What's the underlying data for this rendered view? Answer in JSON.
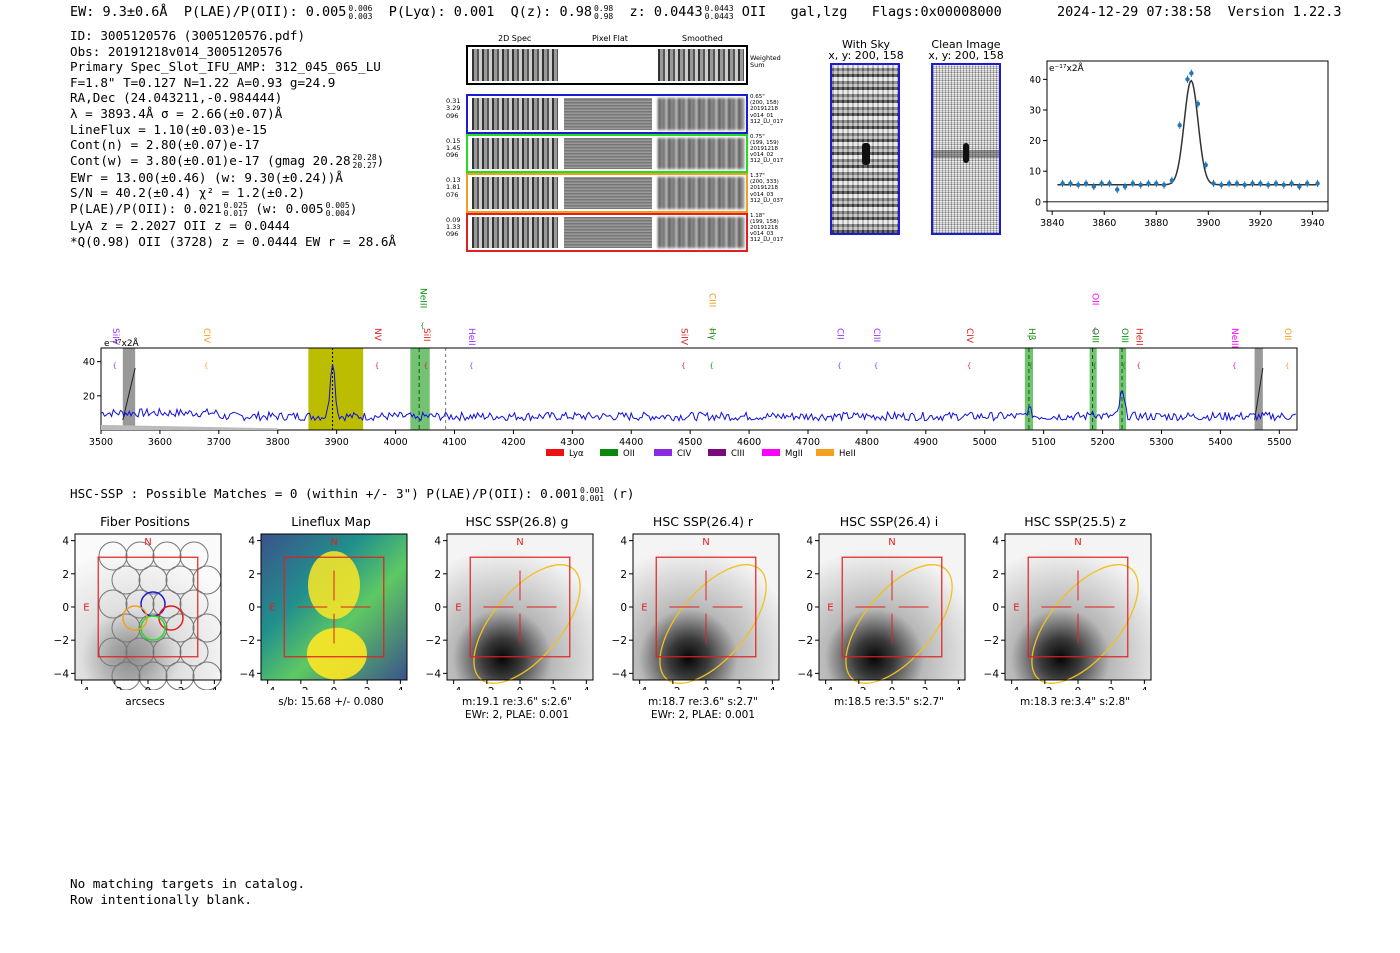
{
  "header": {
    "ew": "EW: 9.3±0.6Å",
    "plae": "P(LAE)/P(OII): 0.005",
    "plae_hi": "0.006",
    "plae_lo": "0.003",
    "plya": "P(Lyα): 0.001",
    "q": "Q(z): 0.98",
    "q_hi": "0.98",
    "q_lo": "0.98",
    "z": "z: 0.0443",
    "z_hi": "0.0443",
    "z_lo": "0.0443",
    "z_line": "OII",
    "class": "gal,lzg",
    "flags": "Flags:0x00008000",
    "timestamp": "2024-12-29 07:38:58",
    "version": "Version 1.22.3"
  },
  "info": {
    "id": "ID: 3005120576 (3005120576.pdf)",
    "obs": "Obs: 20191218v014_3005120576",
    "primary": "Primary Spec_Slot_IFU_AMP: 312_045_065_LU",
    "fwhm": "F=1.8\"  T=0.127  N=1.22  A=0.93  g=24.9",
    "radec": "RA,Dec (24.043211,-0.984444)",
    "lambda": "λ = 3893.4Å  σ = 2.66(±0.07)Å",
    "lineflux": "LineFlux = 1.10(±0.03)e-15",
    "contn": "Cont(n) = 2.80(±0.07)e-17",
    "contw": "Cont(w) = 3.80(±0.01)e-17 (gmag 20.28",
    "contw_hi": "20.28",
    "contw_lo": "20.27",
    "contw_close": ")",
    "ewr": "EWr = 13.00(±0.46) (w: 9.30(±0.24))Å",
    "sn": "S/N = 40.2(±0.4)  χ² = 1.2(±0.2)",
    "plae": "P(LAE)/P(OII): 0.021",
    "plae_hi": "0.025",
    "plae_lo": "0.017",
    "plae_w": "(w: 0.005",
    "plae_w_hi": "0.005",
    "plae_w_lo": "0.004",
    "plae_close": ")",
    "lya": "LyA z = 2.2027  OII z = 0.0444",
    "q": "*Q(0.98) OII (3728) z = 0.0444  EW r = 28.6Å"
  },
  "cutouts": {
    "col_2d": "2D Spec",
    "col_flat": "Pixel Flat",
    "col_smooth": "Smoothed",
    "weighted_sum": "Weighted Sum",
    "rows": [
      {
        "left": [
          "0.31",
          "3.29",
          "096"
        ],
        "right": [
          "0.65\"",
          "(200, 158)",
          "20191218",
          "v014_01",
          "312_LU_017"
        ],
        "color": "#1c1cd4"
      },
      {
        "left": [
          "0.15",
          "1.45",
          "096"
        ],
        "right": [
          "0.75\"",
          "(199, 159)",
          "20191218",
          "v014_02",
          "312_LU_017"
        ],
        "color": "#22dd22"
      },
      {
        "left": [
          "0.13",
          "1.81",
          "076"
        ],
        "right": [
          "1.37\"",
          "(200, 333)",
          "20191218",
          "v014_03",
          "312_LU_037"
        ],
        "color": "#f0a020"
      },
      {
        "left": [
          "0.09",
          "1.33",
          "096"
        ],
        "right": [
          "1.18\"",
          "(199, 158)",
          "20191218",
          "v014_03",
          "312_LU_017"
        ],
        "color": "#e02020"
      }
    ],
    "with_sky_title": "With Sky",
    "with_sky_xy": "x, y: 200, 158",
    "clean_title": "Clean Image",
    "clean_xy": "x, y: 200, 158"
  },
  "zoom_plot": {
    "unit": "e⁻¹⁷x2Å",
    "chart_data": {
      "type": "line",
      "title": "",
      "xlim": [
        3838,
        3946
      ],
      "ylim": [
        -3,
        46
      ],
      "xticks": [
        3840,
        3860,
        3880,
        3900,
        3920,
        3940
      ],
      "yticks": [
        0,
        10,
        20,
        30,
        40
      ],
      "points_x": [
        3844,
        3847,
        3850,
        3853,
        3856,
        3859,
        3862,
        3865,
        3868,
        3871,
        3874,
        3877,
        3880,
        3883,
        3886,
        3889,
        3892,
        3893.5,
        3896,
        3899,
        3902,
        3905,
        3908,
        3911,
        3914,
        3917,
        3920,
        3923,
        3926,
        3929,
        3932,
        3935,
        3938,
        3942
      ],
      "points_y": [
        6,
        6,
        5.5,
        6,
        5,
        6,
        6,
        4,
        5,
        6,
        5.5,
        6,
        6,
        5.5,
        7,
        25,
        40,
        42,
        32,
        12,
        6,
        5.5,
        6,
        6,
        5.5,
        6,
        6,
        5.5,
        6,
        5.5,
        6,
        5,
        6,
        6
      ],
      "fit_center": 3893.4,
      "fit_sigma": 2.66,
      "fit_amp": 34,
      "fit_cont": 5.6
    }
  },
  "spectrum": {
    "unit": "e⁻¹⁷x2Å",
    "chart_data": {
      "type": "line",
      "xlim": [
        3500,
        5530
      ],
      "ylim": [
        0,
        48
      ],
      "xticks": [
        3500,
        3600,
        3700,
        3800,
        3900,
        4000,
        4100,
        4200,
        4300,
        4400,
        4500,
        4600,
        4700,
        4800,
        4900,
        5000,
        5100,
        5200,
        5300,
        5400,
        5500
      ],
      "yticks": [
        20,
        40
      ],
      "peaks": [
        [
          3893,
          41
        ],
        [
          4035,
          6
        ],
        [
          5075,
          12
        ],
        [
          5183,
          11
        ],
        [
          5233,
          22
        ]
      ],
      "baseline": 8
    },
    "lines": [
      {
        "label": "SiIV",
        "x": 3520,
        "color": "#9b30ff",
        "tier": 3
      },
      {
        "label": "CIV",
        "x": 3675,
        "color": "#f0a020",
        "tier": 3
      },
      {
        "label": "NV",
        "x": 3965,
        "color": "#e02020",
        "tier": 3
      },
      {
        "label": "NeIII",
        "x": 4042,
        "color": "#109010",
        "tier": 1
      },
      {
        "label": "SiII",
        "x": 4048,
        "color": "#e02020",
        "tier": 3
      },
      {
        "label": "HeII",
        "x": 4125,
        "color": "#9b30ff",
        "tier": 3
      },
      {
        "label": "SiIV",
        "x": 4485,
        "color": "#e02020",
        "tier": 3
      },
      {
        "label": "CIII",
        "x": 4533,
        "color": "#f0a020",
        "tier": 2
      },
      {
        "label": "Hγ",
        "x": 4533,
        "color": "#109010",
        "tier": 3
      },
      {
        "label": "CII",
        "x": 4750,
        "color": "#9b30ff",
        "tier": 3
      },
      {
        "label": "CIII",
        "x": 4812,
        "color": "#9b30ff",
        "tier": 3
      },
      {
        "label": "CIV",
        "x": 4970,
        "color": "#e02020",
        "tier": 3
      },
      {
        "label": "Hβ",
        "x": 5075,
        "color": "#109010",
        "tier": 3
      },
      {
        "label": "OII",
        "x": 5183,
        "color": "#ff00ff",
        "tier": 2
      },
      {
        "label": "OIII",
        "x": 5183,
        "color": "#109010",
        "tier": 3
      },
      {
        "label": "OIII",
        "x": 5233,
        "color": "#109010",
        "tier": 3
      },
      {
        "label": "HeII",
        "x": 5258,
        "color": "#e02020",
        "tier": 3
      },
      {
        "label": "NeIII",
        "x": 5420,
        "color": "#ff00ff",
        "tier": 3
      },
      {
        "label": "OII",
        "x": 5510,
        "color": "#f0a020",
        "tier": 3
      }
    ],
    "legend": [
      {
        "label": "Lyα",
        "color": "#ee1111"
      },
      {
        "label": "OII",
        "color": "#0a8a0a"
      },
      {
        "label": "CIV",
        "color": "#8a2be2"
      },
      {
        "label": "CIII",
        "color": "#7a0a7a"
      },
      {
        "label": "MgII",
        "color": "#ff00ff"
      },
      {
        "label": "HeII",
        "color": "#f5a020"
      }
    ]
  },
  "hsc": {
    "title": "HSC-SSP : Possible Matches = 0 (within +/- 3\")  P(LAE)/P(OII): 0.001",
    "title_hi": "0.001",
    "title_lo": "0.001",
    "title_band": "(r)",
    "panels": [
      {
        "title": "Fiber Positions",
        "line1": "arcsecs",
        "line2": ""
      },
      {
        "title": "Lineflux Map",
        "line1": "s/b: 15.68 +/- 0.080",
        "line2": ""
      },
      {
        "title": "HSC SSP(26.8) g",
        "line1": "m:19.1  re:3.6\"  s:2.6\"",
        "line2": "EWr: 2, PLAE: 0.001"
      },
      {
        "title": "HSC SSP(26.4) r",
        "line1": "m:18.7  re:3.6\"  s:2.7\"",
        "line2": "EWr: 2, PLAE: 0.001"
      },
      {
        "title": "HSC SSP(26.4) i",
        "line1": "m:18.5  re:3.5\"  s:2.7\"",
        "line2": ""
      },
      {
        "title": "HSC SSP(25.5) z",
        "line1": "m:18.3  re:3.4\"  s:2.8\"",
        "line2": ""
      }
    ],
    "ticks": [
      "−4",
      "−2",
      "0",
      "2",
      "4"
    ],
    "compass_n": "N",
    "compass_e": "E"
  },
  "footer": {
    "line1": "No matching targets in catalog.",
    "line2": "Row intentionally blank."
  }
}
